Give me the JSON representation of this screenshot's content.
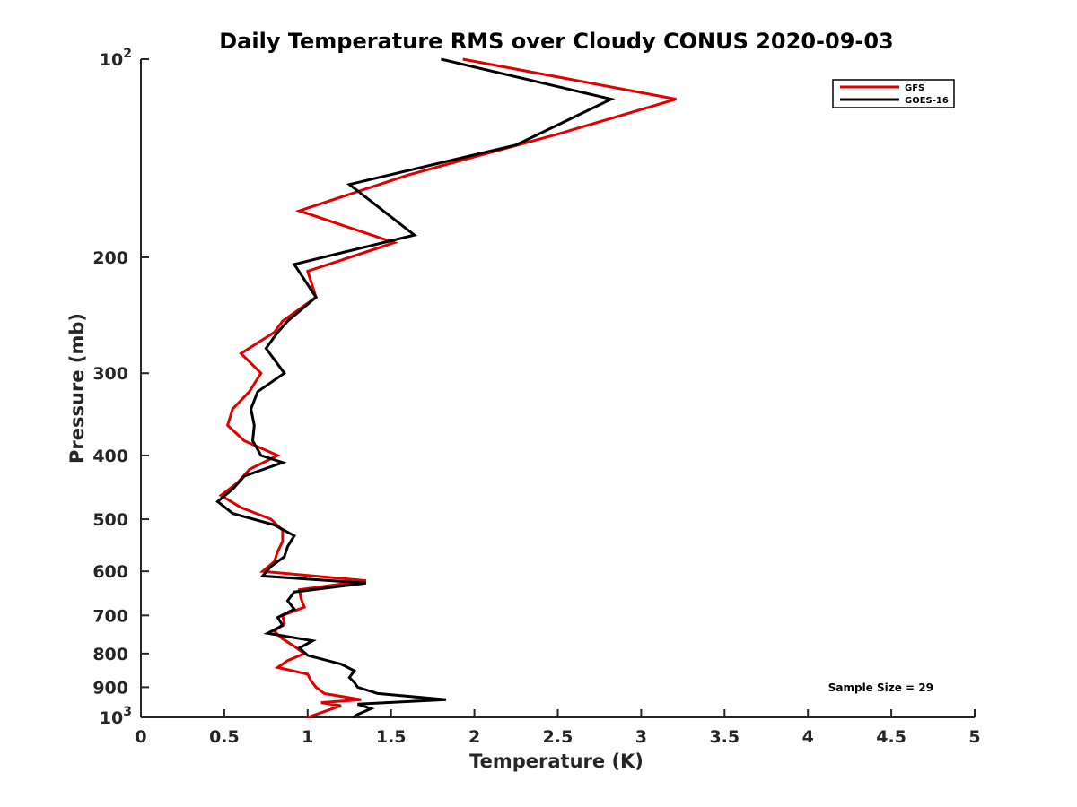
{
  "chart_data": {
    "type": "line",
    "title": "Daily Temperature RMS over Cloudy CONUS 2020-09-03",
    "xlabel": "Temperature (K)",
    "ylabel": "Pressure (mb)",
    "xlim": [
      0,
      5
    ],
    "ylim": [
      100,
      1000
    ],
    "y_scale": "log",
    "y_reversed": true,
    "x_ticks": [
      "0",
      "0.5",
      "1",
      "1.5",
      "2",
      "2.5",
      "3",
      "3.5",
      "4",
      "4.5",
      "5"
    ],
    "y_ticks": [
      {
        "value": 100,
        "base": "10",
        "exp": "2"
      },
      {
        "value": 200,
        "label": "200"
      },
      {
        "value": 300,
        "label": "300"
      },
      {
        "value": 400,
        "label": "400"
      },
      {
        "value": 500,
        "label": "500"
      },
      {
        "value": 600,
        "label": "600"
      },
      {
        "value": 700,
        "label": "700"
      },
      {
        "value": 800,
        "label": "800"
      },
      {
        "value": 900,
        "label": "900"
      },
      {
        "value": 1000,
        "base": "10",
        "exp": "3"
      }
    ],
    "legend": {
      "position": "top-right",
      "entries": [
        "GFS",
        "GOES-16"
      ]
    },
    "annotation": "Sample Size = 29",
    "series": [
      {
        "name": "GFS",
        "color": "#e00000",
        "points": [
          [
            1.93,
            100
          ],
          [
            3.21,
            115
          ],
          [
            2.5,
            130
          ],
          [
            1.6,
            150
          ],
          [
            0.95,
            170
          ],
          [
            1.52,
            190
          ],
          [
            1.0,
            210
          ],
          [
            1.05,
            230
          ],
          [
            0.85,
            250
          ],
          [
            0.8,
            260
          ],
          [
            0.6,
            280
          ],
          [
            0.72,
            300
          ],
          [
            0.65,
            320
          ],
          [
            0.55,
            340
          ],
          [
            0.52,
            360
          ],
          [
            0.62,
            380
          ],
          [
            0.82,
            400
          ],
          [
            0.65,
            420
          ],
          [
            0.58,
            440
          ],
          [
            0.48,
            460
          ],
          [
            0.6,
            480
          ],
          [
            0.78,
            500
          ],
          [
            0.85,
            520
          ],
          [
            0.85,
            540
          ],
          [
            0.82,
            560
          ],
          [
            0.8,
            580
          ],
          [
            0.73,
            600
          ],
          [
            1.35,
            620
          ],
          [
            0.95,
            640
          ],
          [
            0.96,
            660
          ],
          [
            0.98,
            680
          ],
          [
            0.85,
            700
          ],
          [
            0.86,
            720
          ],
          [
            0.8,
            740
          ],
          [
            0.85,
            760
          ],
          [
            0.92,
            780
          ],
          [
            0.98,
            800
          ],
          [
            0.88,
            820
          ],
          [
            0.82,
            840
          ],
          [
            1.0,
            860
          ],
          [
            1.02,
            880
          ],
          [
            1.05,
            900
          ],
          [
            1.1,
            920
          ],
          [
            1.32,
            940
          ],
          [
            1.08,
            950
          ],
          [
            1.2,
            960
          ],
          [
            1.1,
            980
          ],
          [
            1.0,
            1000
          ]
        ]
      },
      {
        "name": "GOES-16",
        "color": "#000000",
        "points": [
          [
            1.8,
            100
          ],
          [
            2.82,
            115
          ],
          [
            2.25,
            135
          ],
          [
            1.25,
            155
          ],
          [
            1.64,
            185
          ],
          [
            0.92,
            205
          ],
          [
            1.05,
            230
          ],
          [
            0.88,
            250
          ],
          [
            0.82,
            260
          ],
          [
            0.75,
            275
          ],
          [
            0.86,
            300
          ],
          [
            0.7,
            320
          ],
          [
            0.66,
            340
          ],
          [
            0.68,
            360
          ],
          [
            0.67,
            380
          ],
          [
            0.72,
            400
          ],
          [
            0.85,
            410
          ],
          [
            0.62,
            430
          ],
          [
            0.55,
            450
          ],
          [
            0.46,
            470
          ],
          [
            0.55,
            490
          ],
          [
            0.8,
            510
          ],
          [
            0.92,
            530
          ],
          [
            0.88,
            550
          ],
          [
            0.86,
            570
          ],
          [
            0.78,
            590
          ],
          [
            0.73,
            610
          ],
          [
            1.35,
            625
          ],
          [
            0.92,
            645
          ],
          [
            0.88,
            665
          ],
          [
            0.92,
            685
          ],
          [
            0.82,
            705
          ],
          [
            0.85,
            725
          ],
          [
            0.76,
            745
          ],
          [
            1.03,
            765
          ],
          [
            0.95,
            785
          ],
          [
            1.0,
            805
          ],
          [
            1.2,
            830
          ],
          [
            1.28,
            850
          ],
          [
            1.25,
            870
          ],
          [
            1.28,
            885
          ],
          [
            1.3,
            900
          ],
          [
            1.42,
            920
          ],
          [
            1.83,
            940
          ],
          [
            1.3,
            955
          ],
          [
            1.38,
            970
          ],
          [
            1.3,
            990
          ],
          [
            1.27,
            1000
          ]
        ]
      }
    ]
  }
}
